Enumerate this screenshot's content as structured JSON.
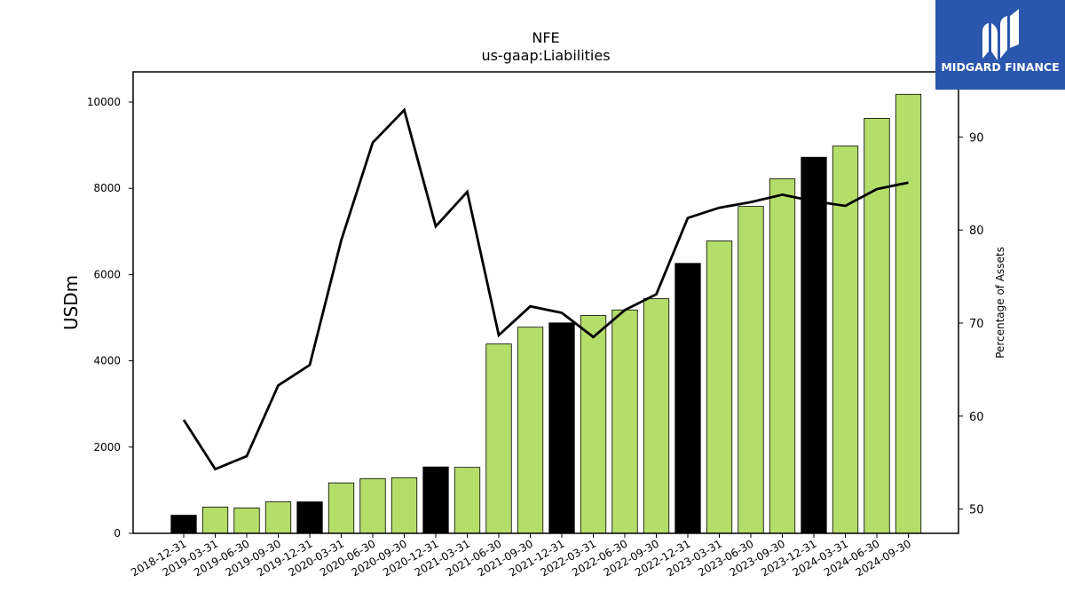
{
  "chart_data": {
    "type": "bar",
    "title": "NFE",
    "subtitle": "us-gaap:Liabilities",
    "ylabel": "USDm",
    "y2label": "Percentage of Assets",
    "ylim": [
      0,
      10700
    ],
    "y2lim": [
      47.4,
      97.0
    ],
    "yticks": [
      0,
      2000,
      4000,
      6000,
      8000,
      10000
    ],
    "y2ticks": [
      50,
      60,
      70,
      80,
      90
    ],
    "categories": [
      "2018-12-31",
      "2019-03-31",
      "2019-06-30",
      "2019-09-30",
      "2019-12-31",
      "2020-03-31",
      "2020-06-30",
      "2020-09-30",
      "2020-12-31",
      "2021-03-31",
      "2021-06-30",
      "2021-09-30",
      "2021-12-31",
      "2022-03-31",
      "2022-06-30",
      "2022-09-30",
      "2022-12-31",
      "2023-03-31",
      "2023-06-30",
      "2023-09-30",
      "2023-12-31",
      "2024-03-31",
      "2024-06-30",
      "2024-09-30"
    ],
    "series": [
      {
        "type": "bar",
        "values": [
          420,
          610,
          590,
          730,
          730,
          1170,
          1270,
          1290,
          1540,
          1530,
          4390,
          4780,
          4880,
          5050,
          5180,
          5440,
          6260,
          6780,
          7580,
          8220,
          8720,
          8980,
          9620,
          10180
        ],
        "colors": [
          "#000000",
          "#b5dd6a",
          "#b5dd6a",
          "#b5dd6a",
          "#000000",
          "#b5dd6a",
          "#b5dd6a",
          "#b5dd6a",
          "#000000",
          "#b5dd6a",
          "#b5dd6a",
          "#b5dd6a",
          "#000000",
          "#b5dd6a",
          "#b5dd6a",
          "#b5dd6a",
          "#000000",
          "#b5dd6a",
          "#b5dd6a",
          "#b5dd6a",
          "#000000",
          "#b5dd6a",
          "#b5dd6a",
          "#b5dd6a"
        ]
      },
      {
        "type": "line",
        "axis": "right",
        "color": "#000000",
        "values": [
          59.6,
          54.3,
          55.7,
          63.3,
          65.5,
          78.9,
          89.4,
          92.9,
          80.4,
          84.1,
          68.7,
          71.8,
          71.1,
          68.5,
          71.4,
          73.1,
          81.3,
          82.4,
          83.0,
          83.8,
          83.1,
          82.6,
          84.4,
          85.1
        ]
      }
    ],
    "grid": false
  },
  "brand": {
    "name": "MIDGARD FINANCE",
    "color": "#2a57ad"
  }
}
